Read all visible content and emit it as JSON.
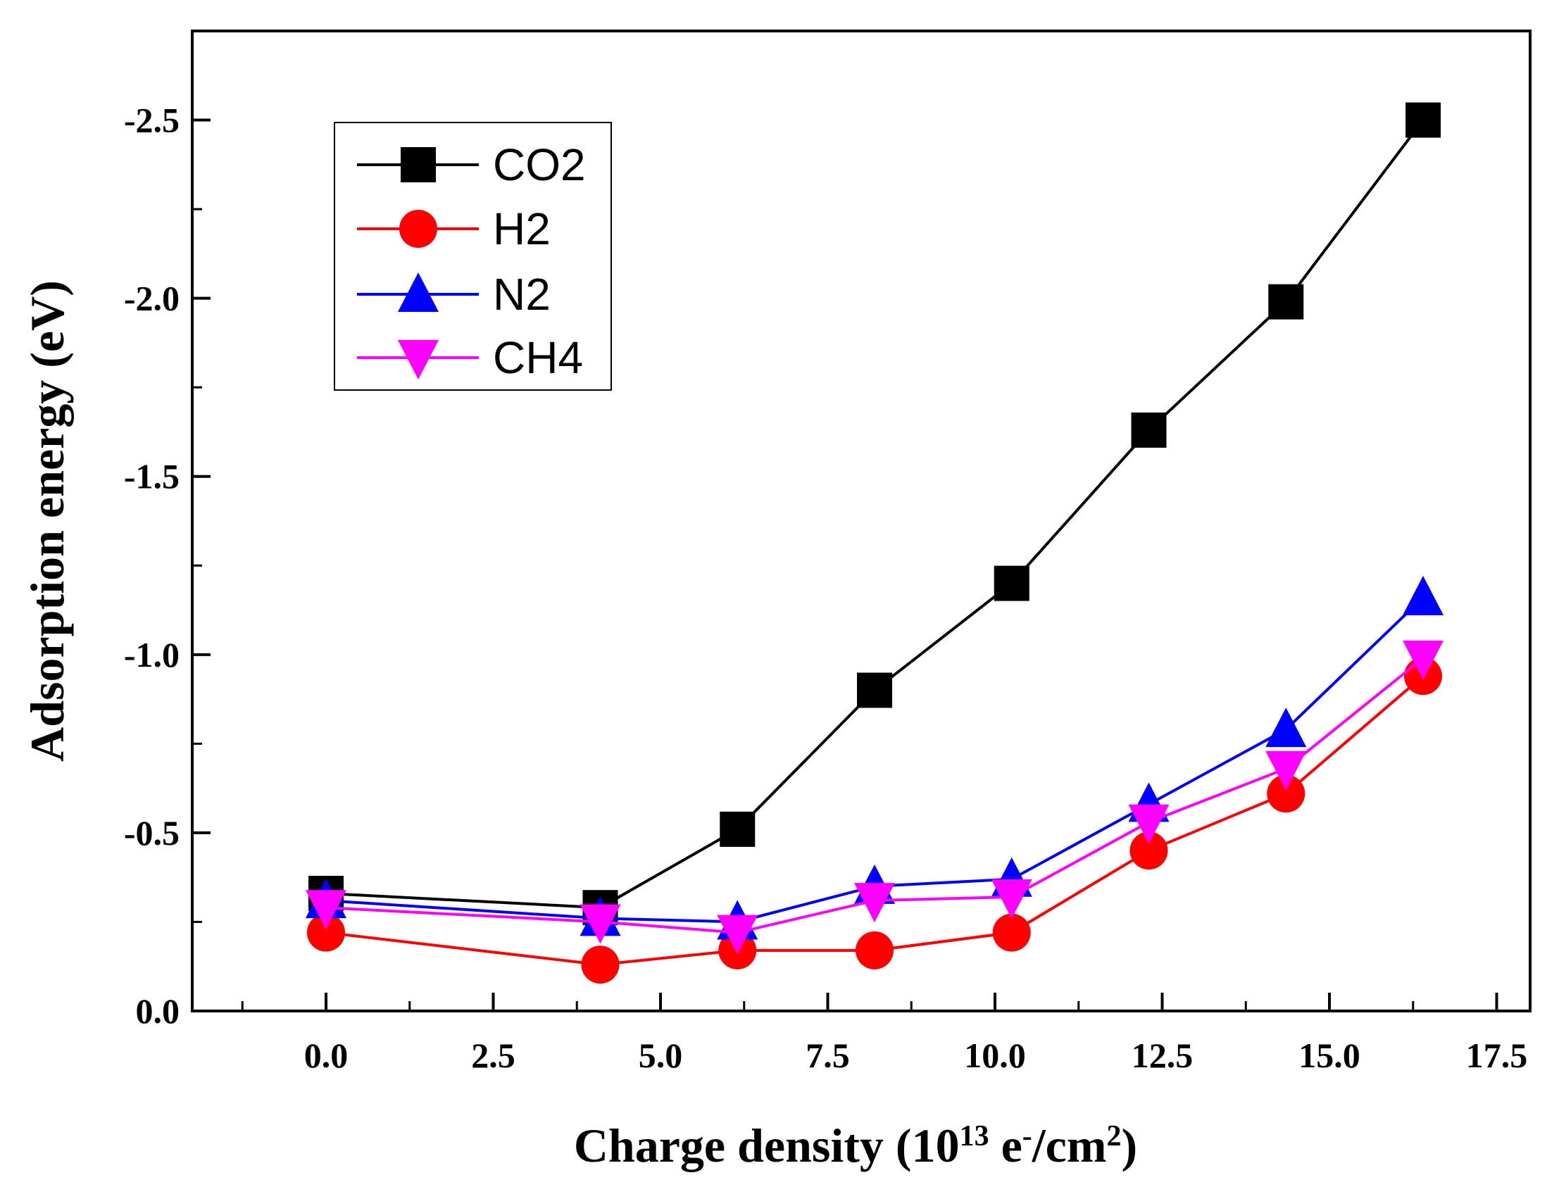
{
  "chart_data": {
    "type": "line",
    "xlabel": "Charge density (10",
    "xlabel_sup": "13",
    "xlabel_mid": " e",
    "xlabel_sup2": "-",
    "xlabel_mid2": "/cm",
    "xlabel_sup3": "2",
    "xlabel_end": ")",
    "ylabel": "Adsorption energy (eV)",
    "xlim": [
      -2.0,
      18.0
    ],
    "ylim": [
      0.0,
      -2.75
    ],
    "x_ticks": [
      0.0,
      2.5,
      5.0,
      7.5,
      10.0,
      12.5,
      15.0,
      17.5
    ],
    "x_tick_labels": [
      "0.0",
      "2.5",
      "5.0",
      "7.5",
      "10.0",
      "12.5",
      "15.0",
      "17.5"
    ],
    "y_ticks": [
      0.0,
      -0.5,
      -1.0,
      -1.5,
      -2.0,
      -2.5
    ],
    "y_tick_labels": [
      "0.0",
      "-0.5",
      "-1.0",
      "-1.5",
      "-2.0",
      "-2.5"
    ],
    "legend_position": "top-left",
    "x": [
      0.0,
      4.1,
      6.15,
      8.2,
      10.25,
      12.3,
      14.35,
      16.4
    ],
    "series": [
      {
        "name": "CO2",
        "color": "#000000",
        "marker": "square",
        "values": [
          -0.33,
          -0.29,
          -0.51,
          -0.9,
          -1.2,
          -1.63,
          -1.99,
          -2.5
        ]
      },
      {
        "name": "H2",
        "color": "#ff0000",
        "marker": "circle",
        "values": [
          -0.22,
          -0.13,
          -0.17,
          -0.17,
          -0.22,
          -0.45,
          -0.61,
          -0.94
        ]
      },
      {
        "name": "N2",
        "color": "#0000ff",
        "marker": "triangle-up",
        "values": [
          -0.31,
          -0.26,
          -0.25,
          -0.35,
          -0.37,
          -0.58,
          -0.79,
          -1.16
        ]
      },
      {
        "name": "CH4",
        "color": "#ff00ff",
        "marker": "triangle-down",
        "values": [
          -0.29,
          -0.25,
          -0.22,
          -0.31,
          -0.32,
          -0.53,
          -0.68,
          -0.99
        ]
      }
    ]
  }
}
